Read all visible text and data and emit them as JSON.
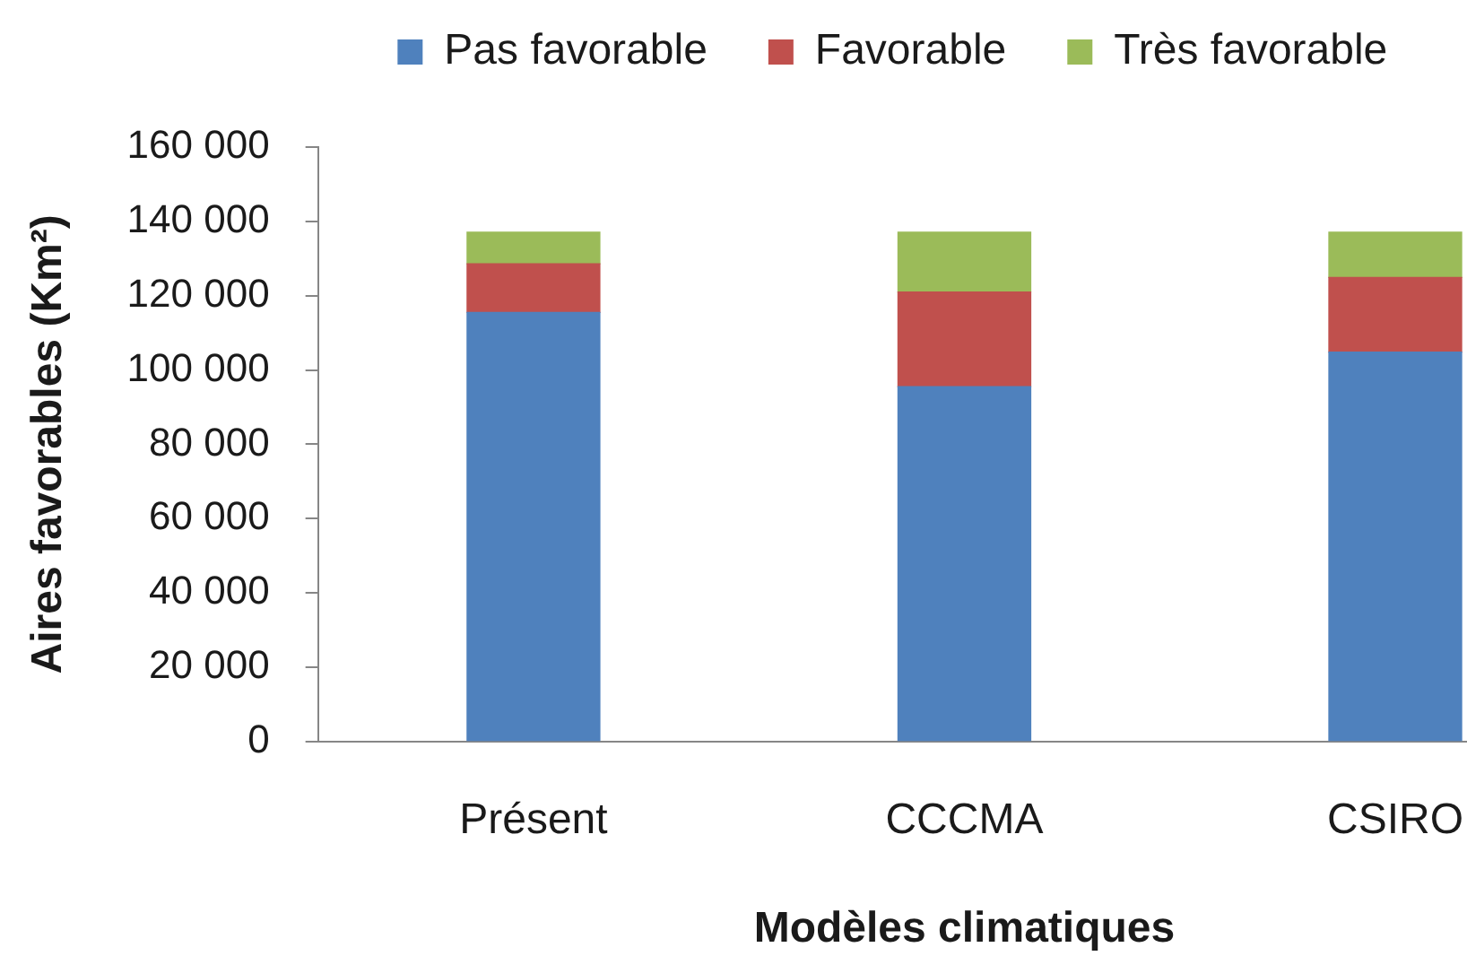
{
  "chart_data": {
    "type": "bar",
    "stacked": true,
    "xlabel": "Modèles climatiques",
    "ylabel": "Aires favorables (Km²)",
    "categories": [
      "Présent",
      "CCCMA",
      "CSIRO"
    ],
    "series": [
      {
        "name": "Pas favorable",
        "color": "#4f81bd",
        "values": [
          115500,
          95500,
          104800
        ]
      },
      {
        "name": "Favorable",
        "color": "#c0504d",
        "values": [
          13100,
          25500,
          20100
        ]
      },
      {
        "name": "Très favorable",
        "color": "#9bbb59",
        "values": [
          8500,
          16100,
          12200
        ]
      }
    ],
    "ylim": [
      0,
      160000
    ],
    "yticks": [
      0,
      {
        "value": 20000,
        "label": "20 000"
      },
      {
        "value": 40000,
        "label": "40 000"
      },
      {
        "value": 60000,
        "label": "60 000"
      },
      {
        "value": 80000,
        "label": "80 000"
      },
      {
        "value": 100000,
        "label": "100 000"
      },
      {
        "value": 120000,
        "label": "120 000"
      },
      {
        "value": 140000,
        "label": "140 000"
      },
      {
        "value": 160000,
        "label": "160 000"
      }
    ],
    "grid": false,
    "legend": "top"
  }
}
